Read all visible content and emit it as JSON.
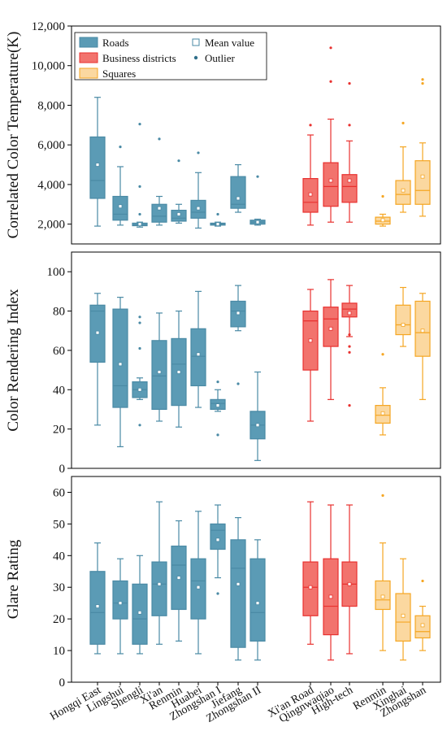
{
  "chart_data": {
    "type": "box",
    "categories": [
      "Hongqi East",
      "Lingshui",
      "Shengli",
      "Xi'an",
      "Renmin",
      "Huabei",
      "Zhongshan I",
      "Jiefang",
      "Zhongshan II",
      "Xi'an Road",
      "Qingnwaqiao",
      "High-tech",
      "Renmin",
      "Xinghai",
      "Zhongshan"
    ],
    "category_groups": [
      0,
      0,
      0,
      0,
      0,
      0,
      0,
      0,
      0,
      1,
      1,
      1,
      2,
      2,
      2
    ],
    "legend": {
      "groups": [
        {
          "name": "Roads",
          "stroke": "#4a8aa5",
          "fill": "#5b9bb5"
        },
        {
          "name": "Business districts",
          "stroke": "#e8312f",
          "fill": "#f2736d"
        },
        {
          "name": "Squares",
          "stroke": "#f5a623",
          "fill": "#fbd8a0"
        }
      ],
      "mean_label": "Mean value",
      "outlier_label": "Outlier"
    },
    "panels": [
      {
        "ylabel": "Correlated Color Temperature(K)",
        "ylim": [
          1000,
          12000
        ],
        "yticks": [
          2000,
          4000,
          6000,
          8000,
          10000,
          12000
        ],
        "ytick_labels": [
          "2,000",
          "4,000",
          "6,000",
          "8,000",
          "10,000",
          "12,000"
        ],
        "boxes": [
          {
            "whislo": 1900,
            "q1": 3300,
            "med": 4200,
            "q3": 6400,
            "whishi": 8400,
            "mean": 5000,
            "fliers": []
          },
          {
            "whislo": 1950,
            "q1": 2200,
            "med": 2500,
            "q3": 3400,
            "whishi": 4900,
            "mean": 2900,
            "fliers": [
              5900
            ]
          },
          {
            "whislo": 1850,
            "q1": 1920,
            "med": 1960,
            "q3": 2050,
            "whishi": 2100,
            "mean": 2000,
            "fliers": [
              2500,
              3900,
              7050
            ]
          },
          {
            "whislo": 1950,
            "q1": 2100,
            "med": 2400,
            "q3": 3000,
            "whishi": 3400,
            "mean": 2800,
            "fliers": [
              6300
            ]
          },
          {
            "whislo": 2050,
            "q1": 2150,
            "med": 2300,
            "q3": 2700,
            "whishi": 3000,
            "mean": 2500,
            "fliers": [
              5200
            ]
          },
          {
            "whislo": 1800,
            "q1": 2300,
            "med": 2600,
            "q3": 3200,
            "whishi": 4600,
            "mean": 2800,
            "fliers": [
              5600
            ]
          },
          {
            "whislo": 1900,
            "q1": 1950,
            "med": 2000,
            "q3": 2050,
            "whishi": 2100,
            "mean": 2000,
            "fliers": [
              2500
            ]
          },
          {
            "whislo": 2600,
            "q1": 2800,
            "med": 3000,
            "q3": 4400,
            "whishi": 5000,
            "mean": 3300,
            "fliers": []
          },
          {
            "whislo": 1950,
            "q1": 2000,
            "med": 2100,
            "q3": 2200,
            "whishi": 2250,
            "mean": 2100,
            "fliers": [
              4400
            ]
          },
          {
            "whislo": 1950,
            "q1": 2600,
            "med": 3100,
            "q3": 4300,
            "whishi": 6500,
            "mean": 3500,
            "fliers": [
              7000
            ]
          },
          {
            "whislo": 2100,
            "q1": 2900,
            "med": 3900,
            "q3": 5100,
            "whishi": 7300,
            "mean": 4200,
            "fliers": [
              9200,
              10900
            ]
          },
          {
            "whislo": 2100,
            "q1": 3100,
            "med": 3900,
            "q3": 4500,
            "whishi": 6200,
            "mean": 4200,
            "fliers": [
              7000,
              9100
            ]
          },
          {
            "whislo": 1900,
            "q1": 2000,
            "med": 2150,
            "q3": 2350,
            "whishi": 2500,
            "mean": 2200,
            "fliers": [
              3400
            ]
          },
          {
            "whislo": 2600,
            "q1": 3000,
            "med": 3500,
            "q3": 4200,
            "whishi": 5900,
            "mean": 3700,
            "fliers": [
              7100
            ]
          },
          {
            "whislo": 2400,
            "q1": 3000,
            "med": 3700,
            "q3": 5200,
            "whishi": 6100,
            "mean": 4400,
            "fliers": [
              9100,
              9300
            ]
          }
        ]
      },
      {
        "ylabel": "Color Rendering Index",
        "ylim": [
          0,
          110
        ],
        "yticks": [
          0,
          20,
          40,
          60,
          80,
          100
        ],
        "ytick_labels": [
          "0",
          "20",
          "40",
          "60",
          "80",
          "100"
        ],
        "boxes": [
          {
            "whislo": 22,
            "q1": 54,
            "med": 80,
            "q3": 83,
            "whishi": 89,
            "mean": 69,
            "fliers": []
          },
          {
            "whislo": 11,
            "q1": 31,
            "med": 42,
            "q3": 81,
            "whishi": 87,
            "mean": 53,
            "fliers": []
          },
          {
            "whislo": 35,
            "q1": 36,
            "med": 40,
            "q3": 44,
            "whishi": 46,
            "mean": 40,
            "fliers": [
              22,
              61,
              74,
              77
            ]
          },
          {
            "whislo": 24,
            "q1": 30,
            "med": 47,
            "q3": 65,
            "whishi": 79,
            "mean": 49,
            "fliers": []
          },
          {
            "whislo": 21,
            "q1": 32,
            "med": 53,
            "q3": 66,
            "whishi": 80,
            "mean": 49,
            "fliers": []
          },
          {
            "whislo": 31,
            "q1": 42,
            "med": 57,
            "q3": 71,
            "whishi": 90,
            "mean": 58,
            "fliers": []
          },
          {
            "whislo": 29,
            "q1": 30,
            "med": 33,
            "q3": 35,
            "whishi": 40,
            "mean": 32,
            "fliers": [
              17,
              44
            ]
          },
          {
            "whislo": 70,
            "q1": 72,
            "med": 80,
            "q3": 85,
            "whishi": 93,
            "mean": 79,
            "fliers": [
              43
            ]
          },
          {
            "whislo": 4,
            "q1": 15,
            "med": 22,
            "q3": 29,
            "whishi": 49,
            "mean": 22,
            "fliers": []
          },
          {
            "whislo": 24,
            "q1": 50,
            "med": 75,
            "q3": 80,
            "whishi": 91,
            "mean": 65,
            "fliers": []
          },
          {
            "whislo": 35,
            "q1": 62,
            "med": 76,
            "q3": 82,
            "whishi": 96,
            "mean": 71,
            "fliers": []
          },
          {
            "whislo": 67,
            "q1": 77,
            "med": 81,
            "q3": 84,
            "whishi": 93,
            "mean": 79,
            "fliers": [
              32,
              59,
              62,
              68
            ]
          },
          {
            "whislo": 17,
            "q1": 23,
            "med": 27,
            "q3": 32,
            "whishi": 41,
            "mean": 28,
            "fliers": [
              58
            ]
          },
          {
            "whislo": 62,
            "q1": 68,
            "med": 73,
            "q3": 83,
            "whishi": 92,
            "mean": 73,
            "fliers": []
          },
          {
            "whislo": 35,
            "q1": 57,
            "med": 69,
            "q3": 85,
            "whishi": 89,
            "mean": 70,
            "fliers": []
          }
        ]
      },
      {
        "ylabel": "Glare Rating",
        "ylim": [
          0,
          65
        ],
        "yticks": [
          0,
          10,
          20,
          30,
          40,
          50,
          60
        ],
        "ytick_labels": [
          "0",
          "10",
          "20",
          "30",
          "40",
          "50",
          "60"
        ],
        "boxes": [
          {
            "whislo": 9,
            "q1": 12,
            "med": 22,
            "q3": 35,
            "whishi": 44,
            "mean": 24,
            "fliers": []
          },
          {
            "whislo": 9,
            "q1": 20,
            "med": 25,
            "q3": 32,
            "whishi": 39,
            "mean": 25,
            "fliers": []
          },
          {
            "whislo": 9,
            "q1": 12,
            "med": 20,
            "q3": 31,
            "whishi": 40,
            "mean": 22,
            "fliers": []
          },
          {
            "whislo": 12,
            "q1": 21,
            "med": 31,
            "q3": 38,
            "whishi": 57,
            "mean": 31,
            "fliers": []
          },
          {
            "whislo": 13,
            "q1": 23,
            "med": 37,
            "q3": 43,
            "whishi": 51,
            "mean": 33,
            "fliers": []
          },
          {
            "whislo": 9,
            "q1": 20,
            "med": 32,
            "q3": 39,
            "whishi": 54,
            "mean": 30,
            "fliers": []
          },
          {
            "whislo": 33,
            "q1": 42,
            "med": 48,
            "q3": 50,
            "whishi": 56,
            "mean": 45,
            "fliers": [
              28
            ]
          },
          {
            "whislo": 7,
            "q1": 11,
            "med": 36,
            "q3": 45,
            "whishi": 52,
            "mean": 31,
            "fliers": []
          },
          {
            "whislo": 7,
            "q1": 13,
            "med": 22,
            "q3": 39,
            "whishi": 45,
            "mean": 25,
            "fliers": []
          },
          {
            "whislo": 12,
            "q1": 21,
            "med": 30,
            "q3": 38,
            "whishi": 57,
            "mean": 30,
            "fliers": []
          },
          {
            "whislo": 7,
            "q1": 15,
            "med": 24,
            "q3": 39,
            "whishi": 56,
            "mean": 27,
            "fliers": []
          },
          {
            "whislo": 9,
            "q1": 24,
            "med": 31,
            "q3": 38,
            "whishi": 56,
            "mean": 31,
            "fliers": []
          },
          {
            "whislo": 10,
            "q1": 23,
            "med": 26,
            "q3": 32,
            "whishi": 44,
            "mean": 27,
            "fliers": [
              59
            ]
          },
          {
            "whislo": 7,
            "q1": 13,
            "med": 19,
            "q3": 28,
            "whishi": 39,
            "mean": 21,
            "fliers": []
          },
          {
            "whislo": 10,
            "q1": 14,
            "med": 16,
            "q3": 21,
            "whishi": 24,
            "mean": 18,
            "fliers": [
              32
            ]
          }
        ]
      }
    ]
  }
}
